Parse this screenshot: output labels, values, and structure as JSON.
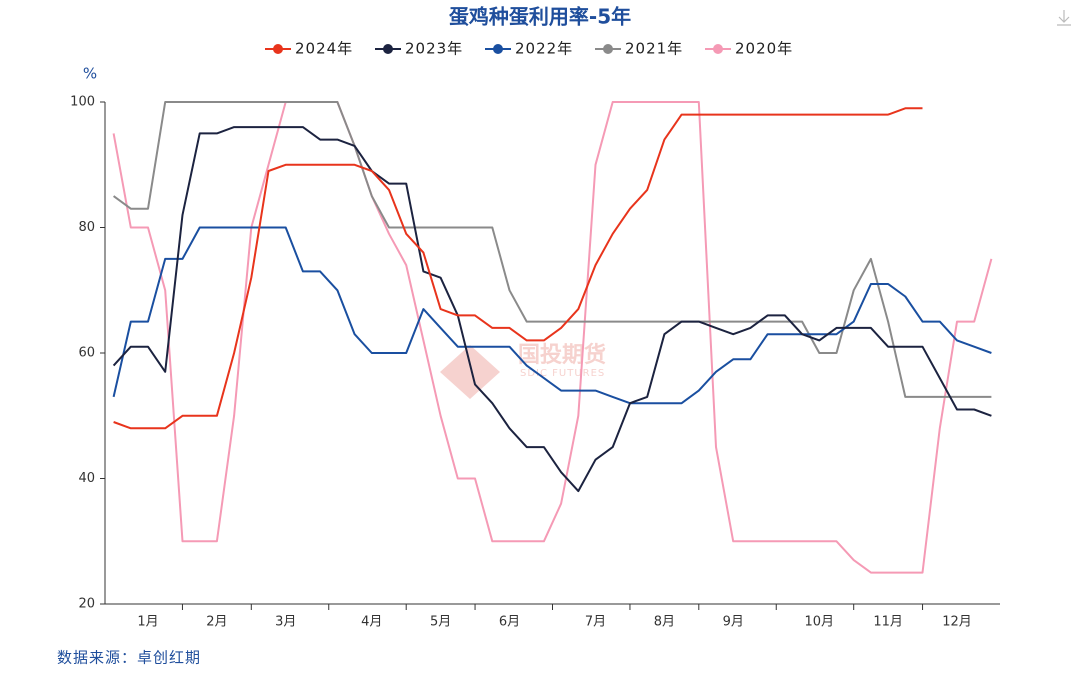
{
  "chart_data": {
    "type": "line",
    "title": "蛋鸡种蛋利用率-5年",
    "y_label": "%",
    "source": "数据来源：卓创红期",
    "watermark": "国投期货",
    "watermark_sub": "SDIC FUTURES",
    "categories": [
      null,
      null,
      "1月",
      null,
      null,
      null,
      "2月",
      null,
      null,
      null,
      "3月",
      null,
      null,
      null,
      null,
      "4月",
      null,
      null,
      null,
      "5月",
      null,
      null,
      null,
      "6月",
      null,
      null,
      null,
      null,
      "7月",
      null,
      null,
      null,
      "8月",
      null,
      null,
      null,
      "9月",
      null,
      null,
      null,
      null,
      "10月",
      null,
      null,
      null,
      "11月",
      null,
      null,
      null,
      "12月",
      null,
      null
    ],
    "ylim": [
      20,
      100
    ],
    "yticks": [
      20,
      40,
      60,
      80,
      100
    ],
    "grid": false,
    "series": [
      {
        "name": "2024年",
        "color": "#e8341c",
        "values": [
          49,
          48,
          48,
          48,
          50,
          50,
          50,
          60,
          72,
          89,
          90,
          90,
          90,
          90,
          90,
          89,
          86,
          79,
          76,
          67,
          66,
          66,
          64,
          64,
          62,
          62,
          64,
          67,
          74,
          79,
          83,
          86,
          94,
          98,
          98,
          98,
          98,
          98,
          98,
          98,
          98,
          98,
          98,
          98,
          98,
          98,
          99,
          99,
          null,
          null,
          null,
          null
        ]
      },
      {
        "name": "2023年",
        "color": "#1c2340",
        "values": [
          58,
          61,
          61,
          57,
          82,
          95,
          95,
          96,
          96,
          96,
          96,
          96,
          94,
          94,
          93,
          89,
          87,
          87,
          73,
          72,
          66,
          55,
          52,
          48,
          45,
          45,
          41,
          38,
          43,
          45,
          52,
          53,
          63,
          65,
          65,
          64,
          63,
          64,
          66,
          66,
          63,
          62,
          64,
          64,
          64,
          61,
          61,
          61,
          56,
          51,
          51,
          50
        ]
      },
      {
        "name": "2022年",
        "color": "#1a4fa0",
        "values": [
          53,
          65,
          65,
          75,
          75,
          80,
          80,
          80,
          80,
          80,
          80,
          73,
          73,
          70,
          63,
          60,
          60,
          60,
          67,
          64,
          61,
          61,
          61,
          61,
          58,
          56,
          54,
          54,
          54,
          53,
          52,
          52,
          52,
          52,
          54,
          57,
          59,
          59,
          63,
          63,
          63,
          63,
          63,
          65,
          71,
          71,
          69,
          65,
          65,
          62,
          61,
          60
        ]
      },
      {
        "name": "2021年",
        "color": "#8a8a8a",
        "values": [
          85,
          83,
          83,
          100,
          100,
          100,
          100,
          100,
          100,
          100,
          100,
          100,
          100,
          100,
          93,
          85,
          80,
          80,
          80,
          80,
          80,
          80,
          80,
          70,
          65,
          65,
          65,
          65,
          65,
          65,
          65,
          65,
          65,
          65,
          65,
          65,
          65,
          65,
          65,
          65,
          65,
          60,
          60,
          70,
          75,
          65,
          53,
          53,
          53,
          53,
          53,
          53
        ]
      },
      {
        "name": "2020年",
        "color": "#f59ab5",
        "values": [
          95,
          80,
          80,
          70,
          30,
          30,
          30,
          50,
          80,
          90,
          100,
          100,
          100,
          100,
          93,
          85,
          79,
          74,
          62,
          50,
          40,
          40,
          30,
          30,
          30,
          30,
          36,
          50,
          90,
          100,
          100,
          100,
          100,
          100,
          100,
          45,
          30,
          30,
          30,
          30,
          30,
          30,
          30,
          27,
          25,
          25,
          25,
          25,
          48,
          65,
          65,
          75
        ]
      }
    ]
  }
}
